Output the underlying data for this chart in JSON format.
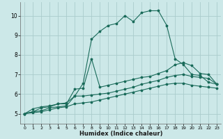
{
  "xlabel": "Humidex (Indice chaleur)",
  "background_color": "#cce8e8",
  "grid_color": "#aacccc",
  "line_color": "#1a6b5a",
  "xlim": [
    -0.5,
    23.5
  ],
  "ylim": [
    4.5,
    10.7
  ],
  "xticks": [
    0,
    1,
    2,
    3,
    4,
    5,
    6,
    7,
    8,
    9,
    10,
    11,
    12,
    13,
    14,
    15,
    16,
    17,
    18,
    19,
    20,
    21,
    22,
    23
  ],
  "yticks": [
    5,
    6,
    7,
    8,
    9,
    10
  ],
  "series": [
    {
      "x": [
        0,
        1,
        2,
        3,
        4,
        5,
        6,
        7,
        8,
        9,
        10,
        11,
        12,
        13,
        14,
        15,
        16,
        17,
        18,
        19,
        20,
        21,
        22,
        23
      ],
      "y": [
        5.0,
        5.25,
        5.35,
        5.4,
        5.5,
        5.55,
        5.9,
        6.55,
        8.8,
        9.2,
        9.5,
        9.6,
        10.0,
        9.7,
        10.15,
        10.25,
        10.25,
        9.5,
        7.8,
        7.5,
        7.0,
        6.95,
        6.6,
        6.5
      ]
    },
    {
      "x": [
        0,
        1,
        2,
        3,
        4,
        5,
        6,
        7,
        8,
        9,
        10,
        11,
        12,
        13,
        14,
        15,
        16,
        17,
        18,
        19,
        20,
        21,
        22,
        23
      ],
      "y": [
        5.0,
        5.1,
        5.3,
        5.35,
        5.5,
        5.5,
        6.25,
        6.3,
        7.8,
        6.35,
        6.45,
        6.55,
        6.65,
        6.75,
        6.85,
        6.9,
        7.05,
        7.2,
        7.5,
        7.6,
        7.45,
        7.05,
        7.0,
        6.5
      ]
    },
    {
      "x": [
        0,
        1,
        2,
        3,
        4,
        5,
        6,
        7,
        8,
        9,
        10,
        11,
        12,
        13,
        14,
        15,
        16,
        17,
        18,
        19,
        20,
        21,
        22,
        23
      ],
      "y": [
        5.0,
        5.1,
        5.15,
        5.3,
        5.35,
        5.4,
        5.9,
        5.9,
        5.95,
        6.0,
        6.05,
        6.15,
        6.25,
        6.35,
        6.5,
        6.6,
        6.7,
        6.85,
        6.95,
        7.0,
        6.9,
        6.85,
        6.8,
        6.5
      ]
    },
    {
      "x": [
        0,
        1,
        2,
        3,
        4,
        5,
        6,
        7,
        8,
        9,
        10,
        11,
        12,
        13,
        14,
        15,
        16,
        17,
        18,
        19,
        20,
        21,
        22,
        23
      ],
      "y": [
        5.0,
        5.05,
        5.1,
        5.2,
        5.3,
        5.35,
        5.5,
        5.55,
        5.6,
        5.7,
        5.8,
        5.9,
        6.0,
        6.1,
        6.2,
        6.3,
        6.4,
        6.5,
        6.55,
        6.55,
        6.45,
        6.4,
        6.35,
        6.3
      ]
    }
  ]
}
